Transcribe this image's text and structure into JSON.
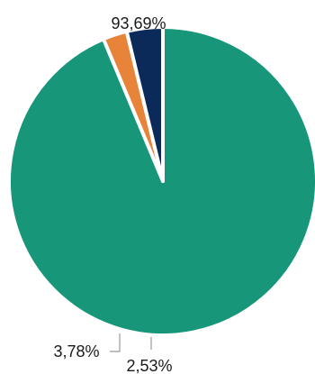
{
  "chart_data": {
    "type": "pie",
    "title": "",
    "slices": [
      {
        "label": "93,69%",
        "value": 93.69,
        "color": "#17967a"
      },
      {
        "label": "2,53%",
        "value": 2.53,
        "color": "#e8833a"
      },
      {
        "label": "3,78%",
        "value": 3.78,
        "color": "#0b2a5a"
      }
    ],
    "start_angle_deg": 0,
    "direction": "clockwise",
    "legend": "none"
  }
}
